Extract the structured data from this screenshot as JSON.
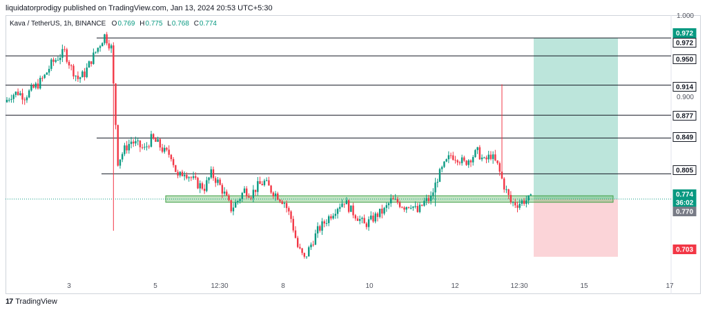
{
  "header": {
    "published": "liquidatorprodigy published on TradingView.com, Jan 13, 2024 20:53 UTC+5:30"
  },
  "symbol": {
    "title": "Kava / TetherUS, 1h, BINANCE",
    "ohlc": [
      {
        "k": "O",
        "v": "0.769"
      },
      {
        "k": "H",
        "v": "0.775"
      },
      {
        "k": "L",
        "v": "0.768"
      },
      {
        "k": "C",
        "v": "0.774"
      }
    ]
  },
  "footer": {
    "brand": "TradingView"
  },
  "colors": {
    "up": "#089981",
    "down": "#f23645",
    "level": "#131722",
    "zone_fill": "#4caf50",
    "profit": "#a6dccf",
    "loss": "#f9c6cb",
    "axis_text": "#50535e"
  },
  "chart_data": {
    "type": "candlestick",
    "ylim": [
      0.68,
      1.0
    ],
    "y_ticks": [
      "1.000",
      "0.900"
    ],
    "x_ticks": [
      "3",
      "5",
      "12:30",
      "8",
      "10",
      "12",
      "12:30",
      "15",
      "17"
    ],
    "level_lines": [
      0.972,
      0.95,
      0.914,
      0.877,
      0.849,
      0.805
    ],
    "price_labels": [
      {
        "text": "0.972",
        "value": 0.972,
        "style": "green"
      },
      {
        "text": "0.972",
        "value": 0.972,
        "style": "outline"
      },
      {
        "text": "0.950",
        "value": 0.95,
        "style": "outline"
      },
      {
        "text": "0.914",
        "value": 0.914,
        "style": "outline"
      },
      {
        "text": "0.877",
        "value": 0.877,
        "style": "outline"
      },
      {
        "text": "0.849",
        "value": 0.849,
        "style": "outline"
      },
      {
        "text": "0.805",
        "value": 0.805,
        "style": "outline"
      },
      {
        "text": "0.774",
        "value": 0.774,
        "style": "green"
      },
      {
        "text": "36:02",
        "value": 0.774,
        "style": "green"
      },
      {
        "text": "0.770",
        "value": 0.77,
        "style": "grey"
      },
      {
        "text": "0.703",
        "value": 0.703,
        "style": "red"
      }
    ],
    "demand_zone": {
      "top": 0.778,
      "bottom": 0.77
    },
    "position": {
      "entry": 0.774,
      "target": 0.972,
      "stop": 0.703
    },
    "last_price": 0.774,
    "price_path": [
      0.893,
      0.902,
      0.905,
      0.9,
      0.908,
      0.915,
      0.925,
      0.94,
      0.948,
      0.955,
      0.935,
      0.922,
      0.928,
      0.945,
      0.96,
      0.975,
      0.96,
      0.82,
      0.835,
      0.845,
      0.84,
      0.835,
      0.848,
      0.842,
      0.832,
      0.828,
      0.8,
      0.808,
      0.8,
      0.792,
      0.788,
      0.805,
      0.795,
      0.78,
      0.762,
      0.772,
      0.785,
      0.78,
      0.79,
      0.795,
      0.785,
      0.778,
      0.77,
      0.75,
      0.715,
      0.7,
      0.718,
      0.735,
      0.745,
      0.755,
      0.765,
      0.772,
      0.76,
      0.752,
      0.742,
      0.748,
      0.755,
      0.76,
      0.772,
      0.77,
      0.765,
      0.768,
      0.758,
      0.77,
      0.775,
      0.8,
      0.815,
      0.828,
      0.825,
      0.818,
      0.825,
      0.832,
      0.82,
      0.828,
      0.815,
      0.79,
      0.77,
      0.768,
      0.772,
      0.774
    ]
  }
}
